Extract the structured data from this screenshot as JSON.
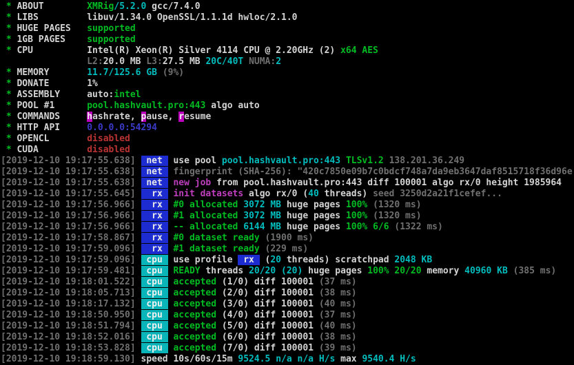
{
  "palette": {
    "background": "#000000",
    "default_text": "#d4d4d4",
    "green": "#00bb22",
    "cyan": "#00bcbc",
    "dim_gray": "#707070",
    "magenta": "#bf3fbf",
    "red": "#bb3333",
    "blue_text": "#3a3ac8",
    "net_rx_badge_bg": "#1c2cd0",
    "cpu_badge_bg": "#0ab5ba",
    "hotkey_bg": "#bb00bb"
  },
  "app": {
    "name": "XMRig",
    "version": "5.2.0",
    "compiler": "gcc/7.4.0"
  },
  "terminal": {
    "lines": [
      {
        "name": "header-line-about",
        "segs": [
          [
            " * ",
            "g"
          ],
          [
            "ABOUT        ",
            "w"
          ],
          [
            "XMRig",
            "g"
          ],
          [
            "/5.2.0",
            "c"
          ],
          [
            " gcc/7.4.0",
            "w"
          ]
        ]
      },
      {
        "name": "header-line-libs",
        "segs": [
          [
            " * ",
            "g"
          ],
          [
            "LIBS         ",
            "w"
          ],
          [
            "libuv/1.34.0 OpenSSL/1.1.1d hwloc/2.1.0",
            "w"
          ]
        ]
      },
      {
        "name": "header-line-huge-pages",
        "segs": [
          [
            " * ",
            "g"
          ],
          [
            "HUGE PAGES   ",
            "w"
          ],
          [
            "supported",
            "g"
          ]
        ]
      },
      {
        "name": "header-line-1gb-pages",
        "segs": [
          [
            " * ",
            "g"
          ],
          [
            "1GB PAGES    ",
            "w"
          ],
          [
            "supported",
            "g"
          ]
        ]
      },
      {
        "name": "header-line-cpu",
        "segs": [
          [
            " * ",
            "g"
          ],
          [
            "CPU          ",
            "w"
          ],
          [
            "Intel(R) Xeon(R) Silver 4114 CPU @ 2.20GHz (2) ",
            "w"
          ],
          [
            "x64 AES",
            "g"
          ]
        ]
      },
      {
        "name": "header-line-cpu-cache",
        "segs": [
          [
            "                ",
            "w"
          ],
          [
            "L2:",
            "d"
          ],
          [
            "20.0 MB ",
            "w"
          ],
          [
            "L3:",
            "d"
          ],
          [
            "27.5 MB ",
            "w"
          ],
          [
            "20C/40T ",
            "c"
          ],
          [
            "NUMA:",
            "d"
          ],
          [
            "2",
            "c"
          ]
        ]
      },
      {
        "name": "header-line-memory",
        "segs": [
          [
            " * ",
            "g"
          ],
          [
            "MEMORY       ",
            "w"
          ],
          [
            "11.7/125.6 GB ",
            "c"
          ],
          [
            "(9%)",
            "d"
          ]
        ]
      },
      {
        "name": "header-line-donate",
        "segs": [
          [
            " * ",
            "g"
          ],
          [
            "DONATE       ",
            "w"
          ],
          [
            "1%",
            "w"
          ]
        ]
      },
      {
        "name": "header-line-assembly",
        "segs": [
          [
            " * ",
            "g"
          ],
          [
            "ASSEMBLY     ",
            "w"
          ],
          [
            "auto:",
            "w"
          ],
          [
            "intel",
            "g"
          ]
        ]
      },
      {
        "name": "header-line-pool",
        "segs": [
          [
            " * ",
            "g"
          ],
          [
            "POOL #1      ",
            "w"
          ],
          [
            "pool.hashvault.pro:443",
            "g"
          ],
          [
            " algo auto",
            "w"
          ]
        ]
      },
      {
        "name": "header-line-commands",
        "segs": [
          [
            " * ",
            "g"
          ],
          [
            "COMMANDS     ",
            "w"
          ],
          [
            "h",
            "hk"
          ],
          [
            "ashrate, ",
            "w"
          ],
          [
            "p",
            "hk"
          ],
          [
            "ause, ",
            "w"
          ],
          [
            "r",
            "hk"
          ],
          [
            "esume",
            "w"
          ]
        ]
      },
      {
        "name": "header-line-http-api",
        "segs": [
          [
            " * ",
            "g"
          ],
          [
            "HTTP API     ",
            "w"
          ],
          [
            "0.0.0.0:54294",
            "b"
          ]
        ]
      },
      {
        "name": "header-line-opencl",
        "segs": [
          [
            " * ",
            "g"
          ],
          [
            "OPENCL       ",
            "w"
          ],
          [
            "disabled",
            "r"
          ]
        ]
      },
      {
        "name": "header-line-cuda",
        "segs": [
          [
            " * ",
            "g"
          ],
          [
            "CUDA         ",
            "w"
          ],
          [
            "disabled",
            "r"
          ]
        ]
      },
      {
        "name": "log-line-use-pool",
        "segs": [
          [
            "[2019-12-10 19:17:55.638] ",
            "d"
          ],
          [
            " net ",
            "tn"
          ],
          [
            " ",
            "w"
          ],
          [
            "use pool ",
            "w"
          ],
          [
            "pool.hashvault.pro:443 ",
            "c"
          ],
          [
            "TLSv1.2 ",
            "g"
          ],
          [
            "138.201.36.249",
            "d"
          ]
        ]
      },
      {
        "name": "log-line-fingerprint",
        "segs": [
          [
            "[2019-12-10 19:17:55.638] ",
            "d"
          ],
          [
            " net ",
            "tn"
          ],
          [
            " ",
            "w"
          ],
          [
            "fingerprint (SHA-256): \"420c7850e09b7c0bdcf748a7da9eb3647daf8515718f36d96e",
            "d"
          ]
        ]
      },
      {
        "name": "log-line-new-job",
        "segs": [
          [
            "[2019-12-10 19:17:55.638] ",
            "d"
          ],
          [
            " net ",
            "tn"
          ],
          [
            " ",
            "w"
          ],
          [
            "new job ",
            "m"
          ],
          [
            "from pool.hashvault.pro:443 diff 100001 algo rx/0 height 1985964",
            "w"
          ]
        ]
      },
      {
        "name": "log-line-init-datasets",
        "segs": [
          [
            "[2019-12-10 19:17:55.645] ",
            "d"
          ],
          [
            "  rx ",
            "tr"
          ],
          [
            " ",
            "w"
          ],
          [
            "init datasets ",
            "m"
          ],
          [
            "algo rx/0 (",
            "w"
          ],
          [
            "40",
            "c"
          ],
          [
            " threads) ",
            "w"
          ],
          [
            "seed 3250d2a21f1cefef...",
            "d"
          ]
        ]
      },
      {
        "name": "log-line-alloc-0",
        "segs": [
          [
            "[2019-12-10 19:17:56.966] ",
            "d"
          ],
          [
            "  rx ",
            "tr"
          ],
          [
            " ",
            "w"
          ],
          [
            "#0 allocated ",
            "g"
          ],
          [
            "3072 MB ",
            "c"
          ],
          [
            "huge pages ",
            "w"
          ],
          [
            "100%",
            "g"
          ],
          [
            " ",
            "w"
          ],
          [
            "(1320 ms)",
            "d"
          ]
        ]
      },
      {
        "name": "log-line-alloc-1",
        "segs": [
          [
            "[2019-12-10 19:17:56.966] ",
            "d"
          ],
          [
            "  rx ",
            "tr"
          ],
          [
            " ",
            "w"
          ],
          [
            "#1 allocated ",
            "g"
          ],
          [
            "3072 MB ",
            "c"
          ],
          [
            "huge pages ",
            "w"
          ],
          [
            "100%",
            "g"
          ],
          [
            " ",
            "w"
          ],
          [
            "(1320 ms)",
            "d"
          ]
        ]
      },
      {
        "name": "log-line-alloc-total",
        "segs": [
          [
            "[2019-12-10 19:17:56.966] ",
            "d"
          ],
          [
            "  rx ",
            "tr"
          ],
          [
            " ",
            "w"
          ],
          [
            "-- allocated ",
            "g"
          ],
          [
            "6144 MB ",
            "c"
          ],
          [
            "huge pages ",
            "w"
          ],
          [
            "100% 6/6",
            "g"
          ],
          [
            " ",
            "w"
          ],
          [
            "(1322 ms)",
            "d"
          ]
        ]
      },
      {
        "name": "log-line-dataset-ready-0",
        "segs": [
          [
            "[2019-12-10 19:17:58.867] ",
            "d"
          ],
          [
            "  rx ",
            "tr"
          ],
          [
            " ",
            "w"
          ],
          [
            "#0 dataset ready ",
            "g"
          ],
          [
            "(1900 ms)",
            "d"
          ]
        ]
      },
      {
        "name": "log-line-dataset-ready-1",
        "segs": [
          [
            "[2019-12-10 19:17:59.096] ",
            "d"
          ],
          [
            "  rx ",
            "tr"
          ],
          [
            " ",
            "w"
          ],
          [
            "#1 dataset ready ",
            "g"
          ],
          [
            "(229 ms)",
            "d"
          ]
        ]
      },
      {
        "name": "log-line-use-profile",
        "segs": [
          [
            "[2019-12-10 19:17:59.096] ",
            "d"
          ],
          [
            " cpu ",
            "tc"
          ],
          [
            " ",
            "w"
          ],
          [
            "use profile ",
            "w"
          ],
          [
            " rx ",
            "ir"
          ],
          [
            " (",
            "w"
          ],
          [
            "20",
            "c"
          ],
          [
            " threads) scratchpad ",
            "w"
          ],
          [
            "2048 KB",
            "c"
          ]
        ]
      },
      {
        "name": "log-line-ready-threads",
        "segs": [
          [
            "[2019-12-10 19:17:59.481] ",
            "d"
          ],
          [
            " cpu ",
            "tc"
          ],
          [
            " ",
            "w"
          ],
          [
            "READY",
            "g"
          ],
          [
            " threads ",
            "w"
          ],
          [
            "20/20 (20)",
            "c"
          ],
          [
            " huge pages ",
            "w"
          ],
          [
            "100% 20/20",
            "g"
          ],
          [
            " memory ",
            "w"
          ],
          [
            "40960 KB ",
            "c"
          ],
          [
            "(385 ms)",
            "d"
          ]
        ]
      },
      {
        "name": "log-line-accepted-1",
        "segs": [
          [
            "[2019-12-10 19:18:01.522] ",
            "d"
          ],
          [
            " cpu ",
            "tc"
          ],
          [
            " ",
            "w"
          ],
          [
            "accepted ",
            "g"
          ],
          [
            "(1/0) diff 100001 ",
            "w"
          ],
          [
            "(37 ms)",
            "d"
          ]
        ]
      },
      {
        "name": "log-line-accepted-2",
        "segs": [
          [
            "[2019-12-10 19:18:05.713] ",
            "d"
          ],
          [
            " cpu ",
            "tc"
          ],
          [
            " ",
            "w"
          ],
          [
            "accepted ",
            "g"
          ],
          [
            "(2/0) diff 100001 ",
            "w"
          ],
          [
            "(38 ms)",
            "d"
          ]
        ]
      },
      {
        "name": "log-line-accepted-3",
        "segs": [
          [
            "[2019-12-10 19:18:17.132] ",
            "d"
          ],
          [
            " cpu ",
            "tc"
          ],
          [
            " ",
            "w"
          ],
          [
            "accepted ",
            "g"
          ],
          [
            "(3/0) diff 100001 ",
            "w"
          ],
          [
            "(40 ms)",
            "d"
          ]
        ]
      },
      {
        "name": "log-line-accepted-4",
        "segs": [
          [
            "[2019-12-10 19:18:50.950] ",
            "d"
          ],
          [
            " cpu ",
            "tc"
          ],
          [
            " ",
            "w"
          ],
          [
            "accepted ",
            "g"
          ],
          [
            "(4/0) diff 100001 ",
            "w"
          ],
          [
            "(37 ms)",
            "d"
          ]
        ]
      },
      {
        "name": "log-line-accepted-5",
        "segs": [
          [
            "[2019-12-10 19:18:51.794] ",
            "d"
          ],
          [
            " cpu ",
            "tc"
          ],
          [
            " ",
            "w"
          ],
          [
            "accepted ",
            "g"
          ],
          [
            "(5/0) diff 100001 ",
            "w"
          ],
          [
            "(40 ms)",
            "d"
          ]
        ]
      },
      {
        "name": "log-line-accepted-6",
        "segs": [
          [
            "[2019-12-10 19:18:52.016] ",
            "d"
          ],
          [
            " cpu ",
            "tc"
          ],
          [
            " ",
            "w"
          ],
          [
            "accepted ",
            "g"
          ],
          [
            "(6/0) diff 100001 ",
            "w"
          ],
          [
            "(38 ms)",
            "d"
          ]
        ]
      },
      {
        "name": "log-line-accepted-7",
        "segs": [
          [
            "[2019-12-10 19:18:53.828] ",
            "d"
          ],
          [
            " cpu ",
            "tc"
          ],
          [
            " ",
            "w"
          ],
          [
            "accepted ",
            "g"
          ],
          [
            "(7/0) diff 100001 ",
            "w"
          ],
          [
            "(39 ms)",
            "d"
          ]
        ]
      },
      {
        "name": "log-line-speed",
        "segs": [
          [
            "[2019-12-10 19:18:59.130] ",
            "d"
          ],
          [
            "speed 10s/60s/15m ",
            "w"
          ],
          [
            "9524.5 ",
            "c"
          ],
          [
            "n/a n/a ",
            "c"
          ],
          [
            "H/s ",
            "c"
          ],
          [
            "max ",
            "w"
          ],
          [
            "9540.4 ",
            "c"
          ],
          [
            "H/s",
            "c"
          ]
        ]
      }
    ]
  }
}
